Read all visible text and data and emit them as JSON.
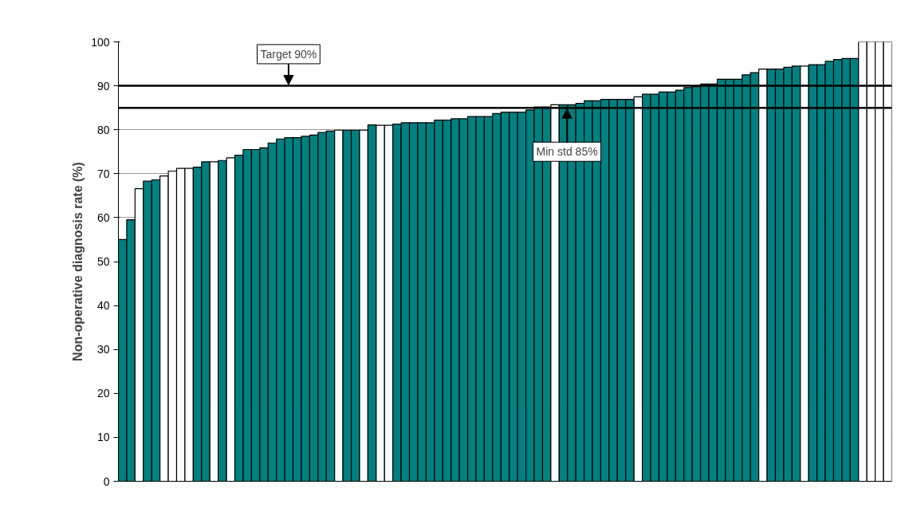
{
  "chart_data": {
    "type": "bar",
    "ylabel": "Non-operative diagnosis rate (%)",
    "categories": [
      null,
      null,
      null,
      null,
      null,
      null,
      null,
      null,
      null,
      null,
      null,
      null,
      null,
      null,
      null,
      null,
      null,
      null,
      null,
      null,
      null,
      null,
      null,
      null,
      null,
      null,
      null,
      null,
      null,
      null,
      null,
      null,
      null,
      null,
      null,
      null,
      null,
      null,
      null,
      null,
      null,
      null,
      null,
      null,
      null,
      null,
      null,
      null,
      null,
      null,
      null,
      null,
      null,
      null,
      null,
      null,
      null,
      null,
      null,
      null,
      null,
      null,
      null,
      null,
      null,
      null,
      null,
      null,
      null,
      null,
      null,
      null,
      null,
      null,
      null,
      null,
      null,
      null,
      null,
      null,
      null,
      null,
      null,
      null,
      null,
      null,
      null,
      null,
      null,
      null,
      null,
      null,
      null
    ],
    "series": [
      {
        "values": [
          55.0,
          59.5,
          66.6,
          68.3,
          68.6,
          69.5,
          70.6,
          71.2,
          71.2,
          71.5,
          72.7,
          72.7,
          73.0,
          73.6,
          74.2,
          75.5,
          75.5,
          75.9,
          77.0,
          77.9,
          78.2,
          78.2,
          78.5,
          78.8,
          79.4,
          79.7,
          79.9,
          79.9,
          79.9,
          79.9,
          81.1,
          81.0,
          81.0,
          81.3,
          81.6,
          81.6,
          81.6,
          81.6,
          82.2,
          82.2,
          82.5,
          82.5,
          83.0,
          83.0,
          83.0,
          83.7,
          84.0,
          84.0,
          84.0,
          84.5,
          85.2,
          85.2,
          85.7,
          85.7,
          85.7,
          86.0,
          86.6,
          86.6,
          86.9,
          86.9,
          86.9,
          86.9,
          87.5,
          88.1,
          88.1,
          88.6,
          88.6,
          89.0,
          89.6,
          89.8,
          90.4,
          90.4,
          91.5,
          91.5,
          91.5,
          92.5,
          93.0,
          93.8,
          93.8,
          93.8,
          94.2,
          94.5,
          94.5,
          94.8,
          94.8,
          95.6,
          96.0,
          96.2,
          96.2,
          100,
          100,
          100,
          100
        ],
        "colors": [
          "#008080",
          "#008080",
          "#ffffff",
          "#008080",
          "#008080",
          "#ffffff",
          "#ffffff",
          "#ffffff",
          "#ffffff",
          "#008080",
          "#008080",
          "#ffffff",
          "#008080",
          "#ffffff",
          "#008080",
          "#008080",
          "#008080",
          "#008080",
          "#008080",
          "#008080",
          "#008080",
          "#008080",
          "#008080",
          "#008080",
          "#008080",
          "#008080",
          "#ffffff",
          "#008080",
          "#008080",
          "#ffffff",
          "#008080",
          "#ffffff",
          "#ffffff",
          "#008080",
          "#008080",
          "#008080",
          "#008080",
          "#008080",
          "#008080",
          "#008080",
          "#008080",
          "#008080",
          "#008080",
          "#008080",
          "#008080",
          "#008080",
          "#008080",
          "#008080",
          "#008080",
          "#008080",
          "#008080",
          "#008080",
          "#ffffff",
          "#008080",
          "#008080",
          "#008080",
          "#008080",
          "#008080",
          "#008080",
          "#008080",
          "#008080",
          "#008080",
          "#ffffff",
          "#008080",
          "#008080",
          "#008080",
          "#008080",
          "#008080",
          "#008080",
          "#008080",
          "#008080",
          "#008080",
          "#008080",
          "#008080",
          "#008080",
          "#008080",
          "#008080",
          "#ffffff",
          "#008080",
          "#008080",
          "#008080",
          "#008080",
          "#ffffff",
          "#008080",
          "#008080",
          "#008080",
          "#008080",
          "#008080",
          "#008080",
          "#ffffff",
          "#ffffff",
          "#ffffff",
          "#ffffff"
        ]
      }
    ],
    "ylim": [
      0,
      100
    ],
    "yticks": [
      0,
      10,
      20,
      30,
      40,
      50,
      60,
      70,
      80,
      90,
      100
    ],
    "grid": "y",
    "tick_labels": "y",
    "ref_lines": [
      {
        "axis": "y",
        "value": 90,
        "label": "Target 90%",
        "color": "#000000"
      },
      {
        "axis": "y",
        "value": 85,
        "label": "Min std 85%",
        "color": "#000000"
      }
    ]
  }
}
